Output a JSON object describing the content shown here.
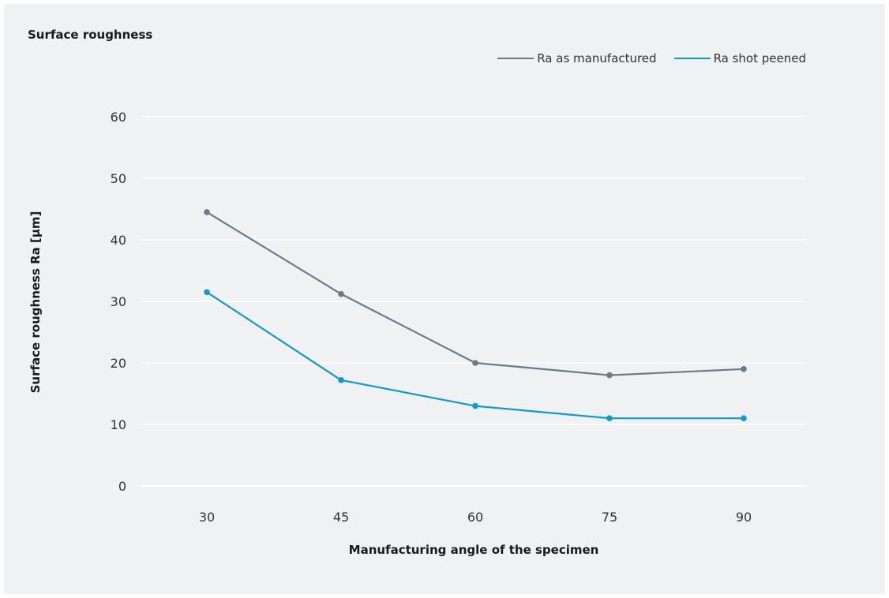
{
  "chart_data": {
    "type": "line",
    "title": "Surface roughness",
    "xlabel": "Manufacturing angle of the specimen",
    "ylabel": "Surface roughness Ra [µm]",
    "categories": [
      "30",
      "45",
      "60",
      "75",
      "90"
    ],
    "ylim": [
      0,
      60
    ],
    "yticks": [
      "0",
      "10",
      "20",
      "30",
      "40",
      "50",
      "60"
    ],
    "grid": true,
    "legend_position": "top-right",
    "series": [
      {
        "name": "Ra as manufactured",
        "color": "#6e7b84",
        "values": [
          44.5,
          31.2,
          20.0,
          18.0,
          19.0
        ]
      },
      {
        "name": "Ra shot peened",
        "color": "#0f9bd1",
        "values": [
          31.5,
          17.2,
          13.0,
          11.0,
          11.0
        ]
      }
    ]
  }
}
